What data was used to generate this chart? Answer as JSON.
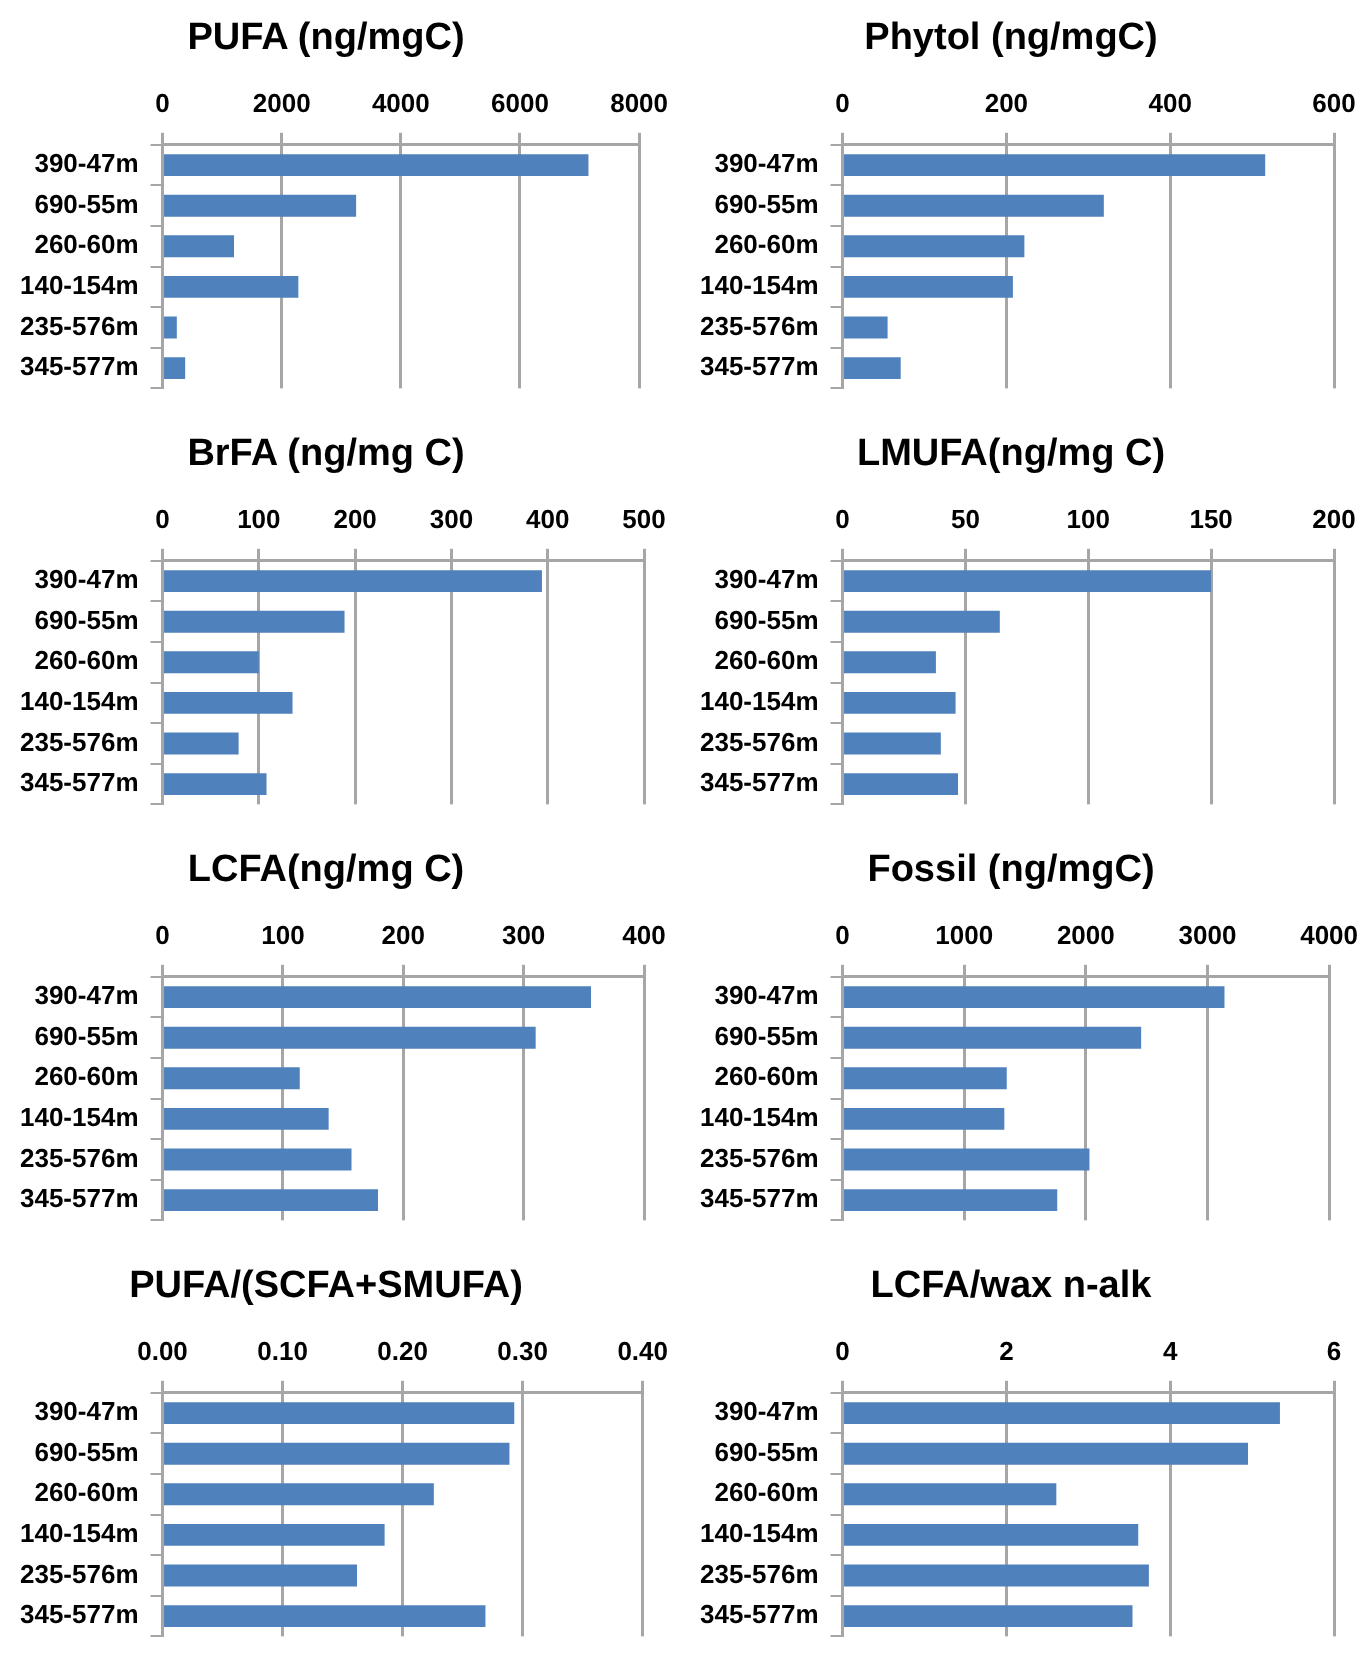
{
  "chart_data": [
    {
      "type": "bar",
      "orientation": "horizontal",
      "title": "PUFA (ng/mgC)",
      "categories": [
        "390-47m",
        "690-55m",
        "260-60m",
        "140-154m",
        "235-576m",
        "345-577m"
      ],
      "values": [
        7150,
        3250,
        1200,
        2280,
        240,
        380
      ],
      "color": "#4f81bd",
      "xlim": [
        0,
        8000
      ],
      "xticks": [
        0,
        2000,
        4000,
        6000,
        8000
      ],
      "grid": "x"
    },
    {
      "type": "bar",
      "orientation": "horizontal",
      "title": "Phytol (ng/mgC)",
      "categories": [
        "390-47m",
        "690-55m",
        "260-60m",
        "140-154m",
        "235-576m",
        "345-577m"
      ],
      "values": [
        516,
        319,
        222,
        208,
        55,
        71
      ],
      "color": "#4f81bd",
      "xlim": [
        0,
        600
      ],
      "xticks": [
        0,
        200,
        400,
        600
      ],
      "grid": "x"
    },
    {
      "type": "bar",
      "orientation": "horizontal",
      "title": "BrFA (ng/mg C)",
      "categories": [
        "390-47m",
        "690-55m",
        "260-60m",
        "140-154m",
        "235-576m",
        "345-577m"
      ],
      "values": [
        394,
        189,
        100,
        135,
        79,
        108
      ],
      "color": "#4f81bd",
      "xlim": [
        0,
        500
      ],
      "xticks": [
        0,
        100,
        200,
        300,
        400,
        500
      ],
      "grid": "x"
    },
    {
      "type": "bar",
      "orientation": "horizontal",
      "title": "LMUFA(ng/mg C)",
      "categories": [
        "390-47m",
        "690-55m",
        "260-60m",
        "140-154m",
        "235-576m",
        "345-577m"
      ],
      "values": [
        150,
        64,
        38,
        46,
        40,
        47
      ],
      "color": "#4f81bd",
      "xlim": [
        0,
        200
      ],
      "xticks": [
        0,
        50,
        100,
        150,
        200
      ],
      "grid": "x"
    },
    {
      "type": "bar",
      "orientation": "horizontal",
      "title": "LCFA(ng/mg C)",
      "categories": [
        "390-47m",
        "690-55m",
        "260-60m",
        "140-154m",
        "235-576m",
        "345-577m"
      ],
      "values": [
        356,
        310,
        114,
        138,
        157,
        179
      ],
      "color": "#4f81bd",
      "xlim": [
        0,
        400
      ],
      "xticks": [
        0,
        100,
        200,
        300,
        400
      ],
      "grid": "x"
    },
    {
      "type": "bar",
      "orientation": "horizontal",
      "title": "Fossil (ng/mgC)",
      "categories": [
        "390-47m",
        "690-55m",
        "260-60m",
        "140-154m",
        "235-576m",
        "345-577m"
      ],
      "values": [
        3140,
        2455,
        1350,
        1330,
        2030,
        1765
      ],
      "color": "#4f81bd",
      "xlim": [
        0,
        4000
      ],
      "xticks": [
        0,
        1000,
        2000,
        3000,
        4000
      ],
      "grid": "x"
    },
    {
      "type": "bar",
      "orientation": "horizontal",
      "title": "PUFA/(SCFA+SMUFA)",
      "categories": [
        "390-47m",
        "690-55m",
        "260-60m",
        "140-154m",
        "235-576m",
        "345-577m"
      ],
      "values": [
        0.293,
        0.289,
        0.226,
        0.185,
        0.162,
        0.269
      ],
      "color": "#4f81bd",
      "xlim": [
        0,
        0.4
      ],
      "xticks": [
        {
          "value": 0,
          "label": "0.00"
        },
        {
          "value": 0.1,
          "label": "0.10"
        },
        {
          "value": 0.2,
          "label": "0.20"
        },
        {
          "value": 0.3,
          "label": "0.30"
        },
        {
          "value": 0.4,
          "label": "0.40"
        }
      ],
      "grid": "x"
    },
    {
      "type": "bar",
      "orientation": "horizontal",
      "title": "LCFA/wax n-alk",
      "categories": [
        "390-47m",
        "690-55m",
        "260-60m",
        "140-154m",
        "235-576m",
        "345-577m"
      ],
      "values": [
        5.34,
        4.95,
        2.61,
        3.61,
        3.74,
        3.54
      ],
      "color": "#4f81bd",
      "xlim": [
        0,
        6
      ],
      "xticks": [
        0,
        2,
        4,
        6
      ],
      "grid": "x"
    }
  ]
}
